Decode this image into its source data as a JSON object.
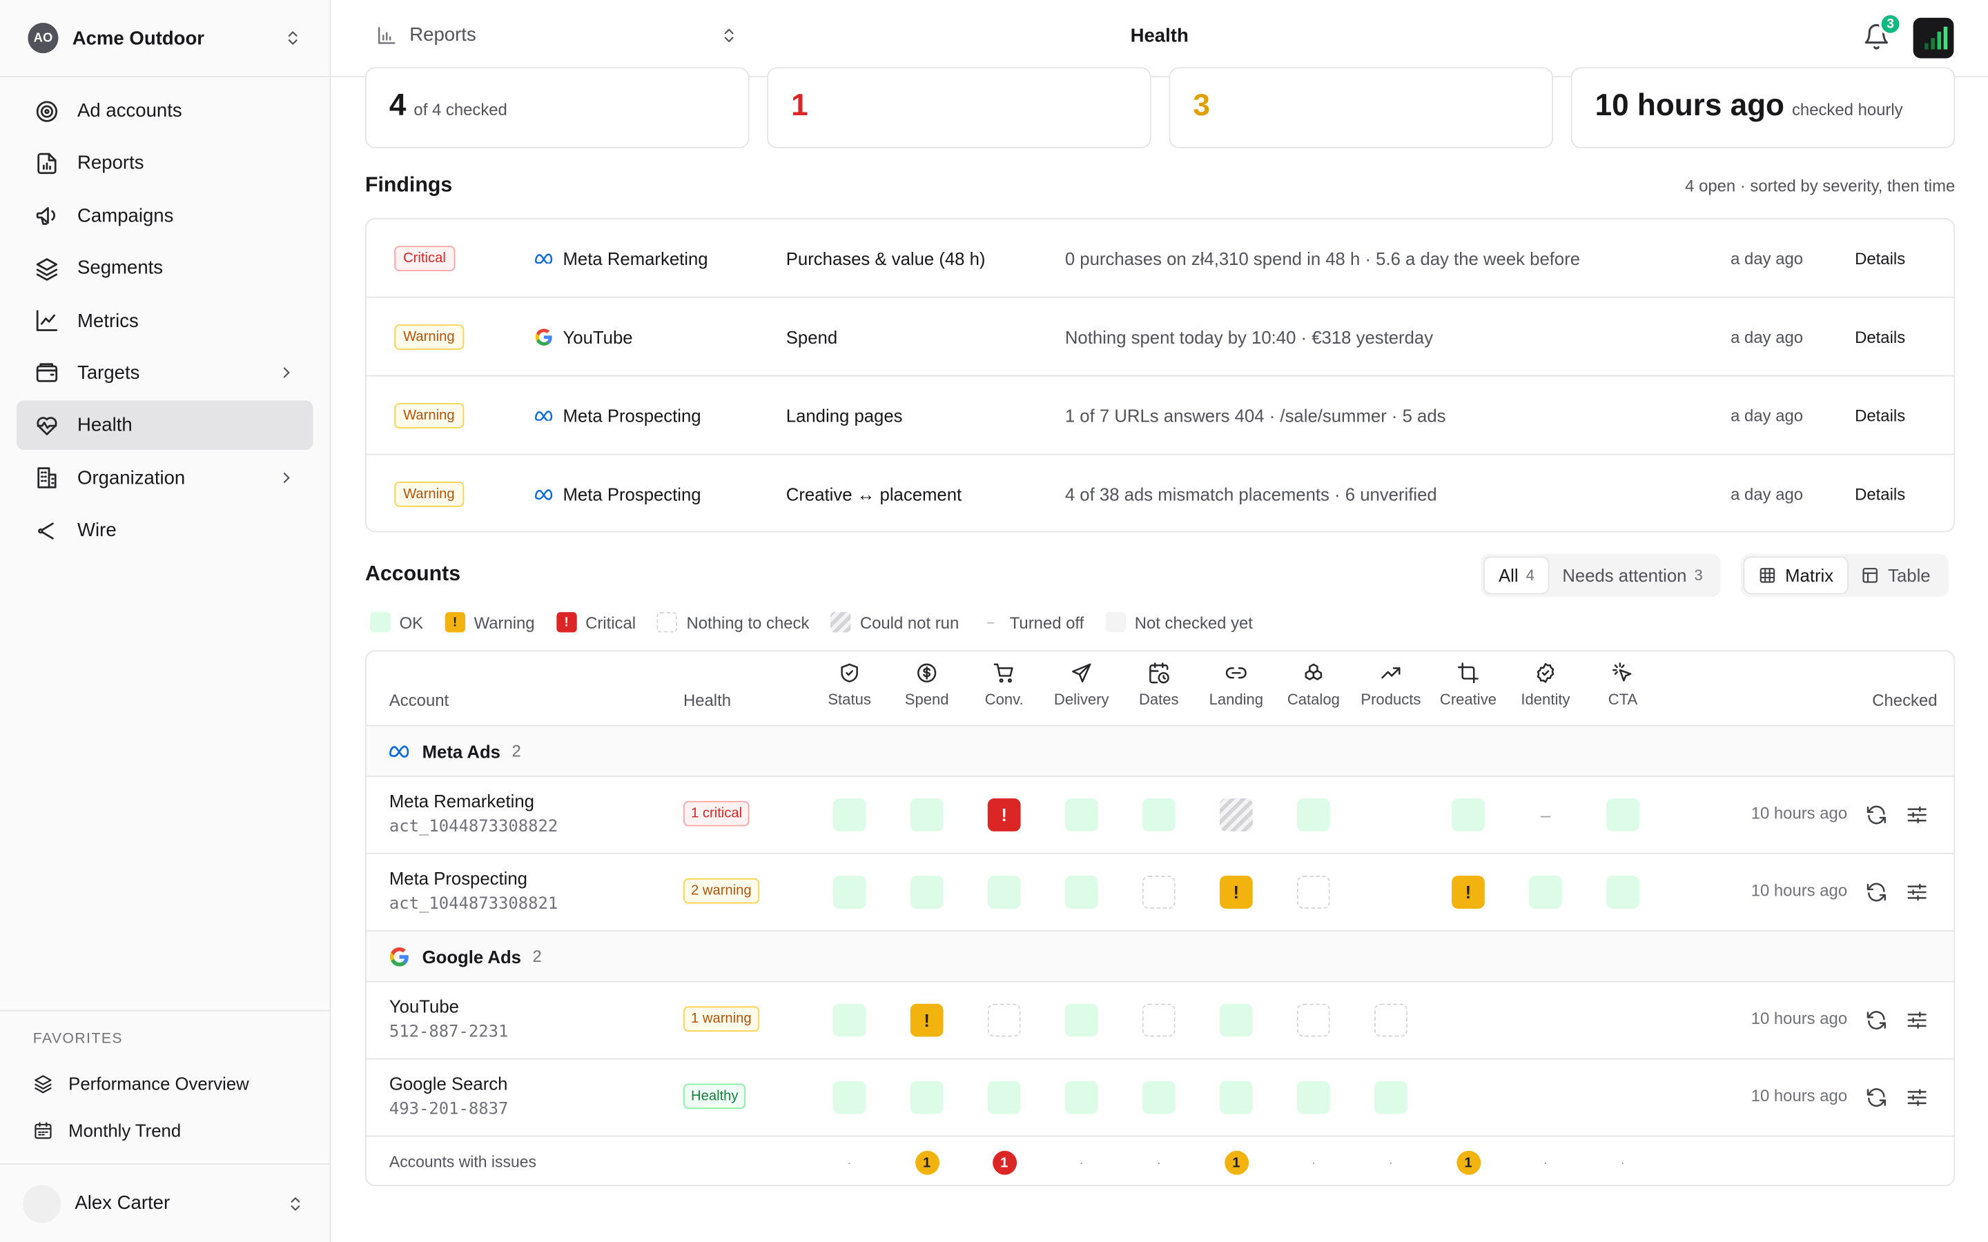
{
  "sidebar": {
    "org_initials": "AO",
    "org_name": "Acme Outdoor",
    "nav": [
      {
        "label": "Ad accounts",
        "icon": "target-icon"
      },
      {
        "label": "Reports",
        "icon": "report-icon"
      },
      {
        "label": "Campaigns",
        "icon": "megaphone-icon"
      },
      {
        "label": "Segments",
        "icon": "layers-icon"
      },
      {
        "label": "Metrics",
        "icon": "line-chart-icon"
      },
      {
        "label": "Targets",
        "icon": "wallet-icon"
      },
      {
        "label": "Health",
        "icon": "heart-pulse-icon"
      },
      {
        "label": "Organization",
        "icon": "building-icon"
      },
      {
        "label": "Wire",
        "icon": "share-icon"
      }
    ],
    "favorites_title": "FAVORITES",
    "favorites": [
      {
        "label": "Performance Overview",
        "icon": "layers-icon"
      },
      {
        "label": "Monthly Trend",
        "icon": "calendar-icon"
      }
    ],
    "user_name": "Alex Carter"
  },
  "header": {
    "section": "Reports",
    "title": "Health",
    "notifications": "3"
  },
  "stats": [
    {
      "big": "4",
      "sub": "of 4 checked",
      "color": "#18181b"
    },
    {
      "big": "1",
      "sub": "",
      "color": "#dc2626"
    },
    {
      "big": "3",
      "sub": "",
      "color": "#e0a000"
    },
    {
      "big": "10 hours ago",
      "sub": "checked hourly",
      "color": "#18181b"
    }
  ],
  "findings": {
    "title": "Findings",
    "meta": "4 open · sorted by severity, then time",
    "rows": [
      {
        "severity": "Critical",
        "platform": "meta",
        "account": "Meta Remarketing",
        "check": "Purchases & value (48 h)",
        "message": "0 purchases on zł4,310 spend in 48 h · 5.6 a day the week before",
        "time": "a day ago",
        "details": "Details"
      },
      {
        "severity": "Warning",
        "platform": "google",
        "account": "YouTube",
        "check": "Spend",
        "message": "Nothing spent today by 10:40 · €318 yesterday",
        "time": "a day ago",
        "details": "Details"
      },
      {
        "severity": "Warning",
        "platform": "meta",
        "account": "Meta Prospecting",
        "check": "Landing pages",
        "message": "1 of 7 URLs answers 404 · /sale/summer · 5 ads",
        "time": "a day ago",
        "details": "Details"
      },
      {
        "severity": "Warning",
        "platform": "meta",
        "account": "Meta Prospecting",
        "check": "Creative ↔ placement",
        "message": "4 of 38 ads mismatch placements · 6 unverified",
        "time": "a day ago",
        "details": "Details"
      }
    ]
  },
  "accounts": {
    "title": "Accounts",
    "filter_all": "All",
    "filter_all_count": "4",
    "filter_attention": "Needs attention",
    "filter_attention_count": "3",
    "view_matrix": "Matrix",
    "view_table": "Table",
    "legend": [
      {
        "kind": "ok",
        "label": "OK"
      },
      {
        "kind": "warn",
        "label": "Warning"
      },
      {
        "kind": "crit",
        "label": "Critical"
      },
      {
        "kind": "none",
        "label": "Nothing to check"
      },
      {
        "kind": "norun",
        "label": "Could not run"
      },
      {
        "kind": "off",
        "label": "Turned off"
      },
      {
        "kind": "pending",
        "label": "Not checked yet"
      }
    ],
    "col_account": "Account",
    "col_health": "Health",
    "col_checked": "Checked",
    "columns": [
      {
        "label": "Status",
        "icon": "shield-icon"
      },
      {
        "label": "Spend",
        "icon": "dollar-circle-icon"
      },
      {
        "label": "Conv.",
        "icon": "cart-icon"
      },
      {
        "label": "Delivery",
        "icon": "send-icon"
      },
      {
        "label": "Dates",
        "icon": "calendar-clock-icon"
      },
      {
        "label": "Landing",
        "icon": "link-icon"
      },
      {
        "label": "Catalog",
        "icon": "boxes-icon"
      },
      {
        "label": "Products",
        "icon": "trending-up-icon"
      },
      {
        "label": "Creative",
        "icon": "crop-icon"
      },
      {
        "label": "Identity",
        "icon": "badge-check-icon"
      },
      {
        "label": "CTA",
        "icon": "pointer-click-icon"
      }
    ],
    "groups": [
      {
        "platform": "meta",
        "name": "Meta Ads",
        "count": "2",
        "rows": [
          {
            "name": "Meta Remarketing",
            "id": "act_1044873308822",
            "health": "1 critical",
            "health_kind": "critical",
            "cells": [
              "ok",
              "ok",
              "crit",
              "ok",
              "ok",
              "norun",
              "ok",
              "",
              "ok",
              "off",
              "ok"
            ],
            "checked": "10 hours ago"
          },
          {
            "name": "Meta Prospecting",
            "id": "act_1044873308821",
            "health": "2 warning",
            "health_kind": "warning",
            "cells": [
              "ok",
              "ok",
              "ok",
              "ok",
              "none",
              "warn",
              "none",
              "",
              "warn",
              "ok",
              "ok"
            ],
            "checked": "10 hours ago"
          }
        ]
      },
      {
        "platform": "google",
        "name": "Google Ads",
        "count": "2",
        "rows": [
          {
            "name": "YouTube",
            "id": "512-887-2231",
            "health": "1 warning",
            "health_kind": "warning",
            "cells": [
              "ok",
              "warn",
              "none",
              "ok",
              "none",
              "ok",
              "none",
              "none",
              "",
              "",
              ""
            ],
            "checked": "10 hours ago"
          },
          {
            "name": "Google Search",
            "id": "493-201-8837",
            "health": "Healthy",
            "health_kind": "healthy",
            "cells": [
              "ok",
              "ok",
              "ok",
              "ok",
              "ok",
              "ok",
              "ok",
              "ok",
              "",
              "",
              ""
            ],
            "checked": "10 hours ago"
          }
        ]
      }
    ],
    "footer_label": "Accounts with issues",
    "footer": [
      {
        "kind": "dot",
        "value": "·"
      },
      {
        "kind": "warn",
        "value": "1"
      },
      {
        "kind": "crit",
        "value": "1"
      },
      {
        "kind": "dot",
        "value": "·"
      },
      {
        "kind": "dot",
        "value": "·"
      },
      {
        "kind": "warn",
        "value": "1"
      },
      {
        "kind": "dot",
        "value": "·"
      },
      {
        "kind": "dot",
        "value": "·"
      },
      {
        "kind": "warn",
        "value": "1"
      },
      {
        "kind": "dot",
        "value": "·"
      },
      {
        "kind": "dot",
        "value": "·"
      }
    ],
    "warn_glyph": "!",
    "off_glyph": "–"
  }
}
